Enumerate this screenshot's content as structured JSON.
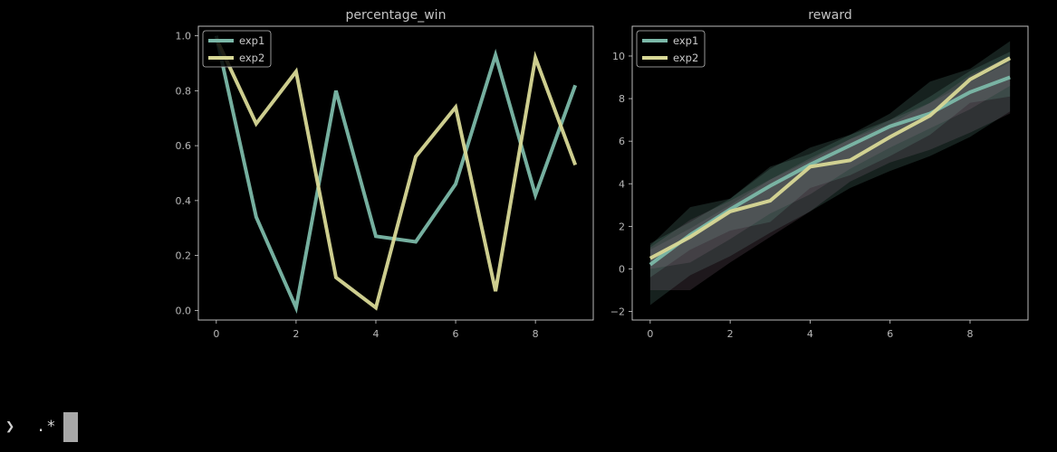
{
  "colors": {
    "exp1": "#7bb8a8",
    "exp2": "#d8d896",
    "axes_edge": "#cfcfcf",
    "text": "#bdbdbd",
    "background": "#000000"
  },
  "chart_data": [
    {
      "type": "line",
      "title": "percentage_win",
      "xlabel": "",
      "ylabel": "",
      "xlim": [
        -0.45,
        9.45
      ],
      "ylim": [
        -0.035,
        1.035
      ],
      "xticks": [
        0,
        2,
        4,
        6,
        8
      ],
      "yticks": [
        0.0,
        0.2,
        0.4,
        0.6,
        0.8,
        1.0
      ],
      "ytick_labels": [
        "0.0",
        "0.2",
        "0.4",
        "0.6",
        "0.8",
        "1.0"
      ],
      "legend": "top-left",
      "grid": false,
      "x": [
        0,
        1,
        2,
        3,
        4,
        5,
        6,
        7,
        8,
        9
      ],
      "series": [
        {
          "name": "exp1",
          "values": [
            1.0,
            0.34,
            0.01,
            0.8,
            0.27,
            0.25,
            0.46,
            0.93,
            0.42,
            0.82
          ]
        },
        {
          "name": "exp2",
          "values": [
            0.99,
            0.68,
            0.87,
            0.12,
            0.01,
            0.56,
            0.74,
            0.07,
            0.92,
            0.53
          ]
        }
      ]
    },
    {
      "type": "line",
      "title": "reward",
      "xlabel": "",
      "ylabel": "",
      "xlim": [
        -0.45,
        9.45
      ],
      "ylim": [
        -2.4,
        11.4
      ],
      "xticks": [
        0,
        2,
        4,
        6,
        8
      ],
      "yticks": [
        -2,
        0,
        2,
        4,
        6,
        8,
        10
      ],
      "ytick_labels": [
        "−2",
        "0",
        "2",
        "4",
        "6",
        "8",
        "10"
      ],
      "legend": "top-left",
      "grid": false,
      "x": [
        0,
        1,
        2,
        3,
        4,
        5,
        6,
        7,
        8,
        9
      ],
      "series": [
        {
          "name": "exp1",
          "values": [
            0.2,
            1.6,
            2.8,
            3.9,
            4.9,
            5.8,
            6.7,
            7.3,
            8.3,
            9.0
          ],
          "bands": [
            {
              "lower": [
                -1.7,
                -0.3,
                0.6,
                1.7,
                2.7,
                3.8,
                4.6,
                5.3,
                6.2,
                7.4
              ],
              "upper": [
                1.1,
                2.9,
                3.3,
                4.8,
                5.4,
                6.3,
                7.3,
                8.8,
                9.4,
                10.7
              ]
            },
            {
              "lower": [
                -1.0,
                -1.0,
                0.3,
                1.5,
                2.7,
                4.1,
                5.0,
                5.6,
                6.4,
                7.3
              ],
              "upper": [
                0.9,
                1.9,
                3.0,
                4.2,
                5.2,
                6.1,
                7.0,
                7.8,
                8.8,
                9.7
              ]
            }
          ]
        },
        {
          "name": "exp2",
          "values": [
            0.5,
            1.5,
            2.7,
            3.2,
            4.8,
            5.1,
            6.2,
            7.2,
            8.9,
            9.9
          ],
          "bands": [
            {
              "lower": [
                -0.4,
                0.9,
                1.8,
                2.2,
                3.8,
                4.4,
                5.3,
                6.3,
                7.8,
                8.1
              ],
              "upper": [
                1.2,
                2.2,
                3.3,
                4.7,
                5.7,
                6.3,
                7.0,
                8.1,
                9.3,
                10.2
              ]
            },
            {
              "lower": [
                0.0,
                0.3,
                1.4,
                2.6,
                3.5,
                4.7,
                5.7,
                6.6,
                7.5,
                8.6
              ],
              "upper": [
                1.0,
                2.3,
                3.2,
                4.2,
                5.1,
                6.1,
                6.8,
                7.8,
                9.1,
                10.0
              ]
            }
          ]
        }
      ]
    }
  ],
  "terminal": {
    "prompt_symbol": "❯",
    "input_text": ".*"
  }
}
